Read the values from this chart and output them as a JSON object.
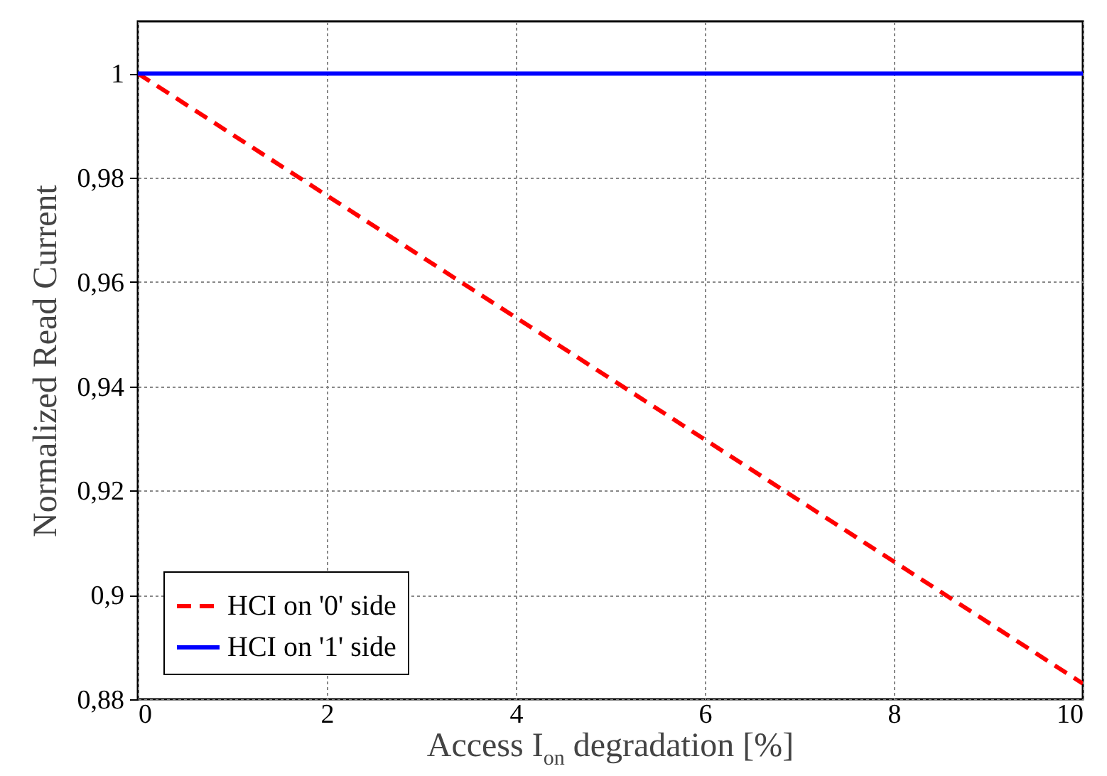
{
  "chart_data": {
    "type": "line",
    "xlabel": "Access I$_{on}$ degradation [%]",
    "ylabel": "Normalized Read Current",
    "xlim": [
      0,
      10
    ],
    "xticks": [
      0,
      2,
      4,
      6,
      8,
      10
    ],
    "ylim": [
      0.88,
      1.01
    ],
    "yticks": [
      {
        "value": 0.88,
        "label": "0,88"
      },
      {
        "value": 0.9,
        "label": "0,9"
      },
      {
        "value": 0.92,
        "label": "0,92"
      },
      {
        "value": 0.94,
        "label": "0,94"
      },
      {
        "value": 0.96,
        "label": "0,96"
      },
      {
        "value": 0.98,
        "label": "0,98"
      },
      {
        "value": 1,
        "label": "1"
      }
    ],
    "grid": true,
    "legend": "bottom left",
    "x": [
      0,
      10
    ],
    "series": [
      {
        "name": "HCI on '0' side",
        "color": "#ff0000",
        "line_style": "dashed",
        "values": [
          1,
          0.883
        ]
      },
      {
        "name": "HCI on '1' side",
        "color": "#0000ff",
        "line_style": "solid",
        "values": [
          1,
          1
        ]
      }
    ]
  }
}
